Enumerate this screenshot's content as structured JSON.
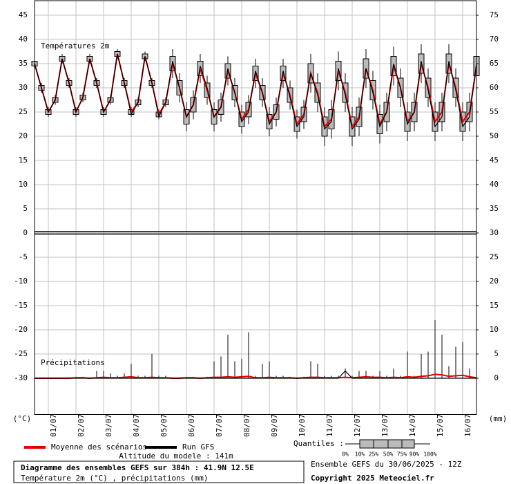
{
  "chart_data": {
    "type": "ensemble",
    "panel_labels": {
      "temperature": "Températures 2m",
      "precipitation": "Précipitations"
    },
    "y_unit": "(°C)",
    "y2_unit": "(mm)",
    "x": [
      0,
      6,
      12,
      18,
      24,
      30,
      36,
      42,
      48,
      54,
      60,
      66,
      72,
      78,
      84,
      90,
      96,
      102,
      108,
      114,
      120,
      126,
      132,
      138,
      144,
      150,
      156,
      162,
      168,
      174,
      180,
      186,
      192,
      198,
      204,
      210,
      216,
      222,
      228,
      234,
      240,
      246,
      252,
      258,
      264,
      270,
      276,
      282,
      288,
      294,
      300,
      306,
      312,
      318,
      324,
      330,
      336,
      342,
      348,
      354,
      360,
      366,
      372,
      378,
      384
    ],
    "xlim": [
      0,
      384
    ],
    "xticks": [
      {
        "value": 12,
        "label": "01/07"
      },
      {
        "value": 36,
        "label": "02/07"
      },
      {
        "value": 60,
        "label": "03/07"
      },
      {
        "value": 84,
        "label": "04/07"
      },
      {
        "value": 108,
        "label": "05/07"
      },
      {
        "value": 132,
        "label": "06/07"
      },
      {
        "value": 156,
        "label": "07/07"
      },
      {
        "value": 180,
        "label": "08/07"
      },
      {
        "value": 204,
        "label": "09/07"
      },
      {
        "value": 228,
        "label": "10/07"
      },
      {
        "value": 252,
        "label": "11/07"
      },
      {
        "value": 276,
        "label": "12/07"
      },
      {
        "value": 300,
        "label": "13/07"
      },
      {
        "value": 324,
        "label": "14/07"
      },
      {
        "value": 348,
        "label": "15/07"
      },
      {
        "value": 372,
        "label": "16/07"
      }
    ],
    "ylim": [
      -37.5,
      48
    ],
    "yticks": [
      45,
      40,
      35,
      30,
      25,
      20,
      15,
      10,
      5,
      0,
      -5,
      -10,
      -15,
      -20,
      -25,
      -30
    ],
    "y2lim": [
      -7.5,
      78
    ],
    "y2ticks": [
      75,
      70,
      65,
      60,
      55,
      50,
      45,
      40,
      35,
      30,
      25,
      20,
      15,
      10,
      5,
      0
    ],
    "grid": true,
    "series": [
      {
        "name": "Moyenne des scénarios",
        "color": "#e00000",
        "values": [
          35,
          30,
          25,
          27.5,
          36,
          31,
          25,
          28,
          36,
          31,
          25,
          27.5,
          37,
          31,
          25,
          27,
          36.5,
          31,
          24.5,
          27,
          35,
          30,
          24,
          26.5,
          34,
          29.5,
          24,
          26,
          33.5,
          29,
          23.5,
          25.5,
          33,
          29,
          23,
          25,
          33,
          28.5,
          22.5,
          24.5,
          33,
          29,
          22,
          23.5,
          33.5,
          29,
          22,
          24,
          34,
          29.5,
          22.5,
          25,
          34.5,
          30,
          23,
          25,
          35,
          30,
          23,
          25,
          35,
          30,
          23,
          25,
          34.5
        ]
      },
      {
        "name": "Run GFS",
        "color": "#000000",
        "values": [
          35,
          30,
          25,
          27.5,
          36,
          31,
          25,
          28,
          36,
          31,
          25,
          27.5,
          37,
          31,
          24.5,
          27,
          36.5,
          31,
          24,
          27,
          35.5,
          30,
          24,
          26.5,
          34.5,
          30,
          24,
          26,
          34,
          29,
          23,
          25,
          33.5,
          29,
          22.5,
          25,
          33.5,
          28,
          22,
          24,
          33,
          28.5,
          21.5,
          23,
          34,
          28.5,
          21.5,
          23.5,
          34,
          29,
          22,
          25,
          35,
          30,
          22.5,
          25,
          35.5,
          29.5,
          22,
          24,
          35.5,
          29.5,
          22,
          24,
          35
        ]
      },
      {
        "axis": "y2",
        "color": "#e00000",
        "values": [
          0,
          0,
          0,
          0,
          0,
          0,
          0.1,
          0.1,
          0,
          0.1,
          0.2,
          0.1,
          0.1,
          0.2,
          0.3,
          0.1,
          0.1,
          0.2,
          0.1,
          0.1,
          0,
          0,
          0.1,
          0.1,
          0,
          0.1,
          0.2,
          0.2,
          0.3,
          0.2,
          0.3,
          0.4,
          0.1,
          0.1,
          0.2,
          0.1,
          0.1,
          0.1,
          0,
          0.1,
          0.2,
          0.2,
          0.1,
          0.1,
          0.1,
          0.2,
          0.1,
          0.2,
          0.3,
          0.2,
          0.2,
          0.1,
          0.2,
          0.1,
          0.3,
          0.2,
          0.4,
          0.5,
          0.8,
          0.7,
          0.4,
          0.5,
          0.6,
          0.3,
          0.1
        ]
      },
      {
        "axis": "y2",
        "color": "#000000",
        "values": [
          0,
          0,
          0,
          0,
          0,
          0,
          0,
          0,
          0,
          0,
          0,
          0,
          0,
          0,
          0,
          0,
          0,
          0,
          0,
          0,
          0,
          0,
          0,
          0,
          0,
          0,
          0,
          0,
          0,
          0,
          0,
          0,
          0,
          0,
          0,
          0,
          0,
          0,
          0,
          0,
          0,
          0,
          0,
          0,
          0,
          1.5,
          0,
          0,
          0,
          0,
          0,
          0,
          0,
          0,
          0,
          0,
          0,
          0,
          0,
          0,
          0,
          0,
          0,
          0,
          0
        ]
      }
    ],
    "boxes": {
      "q1": [
        34.5,
        29.5,
        24.5,
        27,
        35.5,
        30.5,
        24.5,
        27.5,
        35.5,
        30.5,
        24.5,
        27,
        36.5,
        30.5,
        24.5,
        26.5,
        36,
        30.5,
        24,
        26.5,
        33.5,
        28.5,
        22.5,
        25,
        32.5,
        28,
        22.5,
        24.5,
        32,
        27.5,
        22,
        24,
        31.5,
        27.5,
        21.5,
        23.5,
        31.5,
        27,
        21,
        23,
        31,
        27,
        20,
        21.5,
        31.5,
        27,
        20,
        22,
        32,
        27.5,
        20.5,
        23,
        32.5,
        28,
        21,
        23,
        33,
        28,
        21,
        23,
        33,
        28,
        21,
        23,
        32.5
      ],
      "q3": [
        35.5,
        30.5,
        25.5,
        28,
        36.5,
        31.5,
        25.5,
        28.5,
        36.5,
        31.5,
        25.5,
        28,
        37.5,
        31.5,
        25.5,
        27.5,
        37,
        31.5,
        25,
        27.5,
        36.5,
        31.5,
        25.5,
        28,
        35.5,
        31,
        25.5,
        27.5,
        35,
        30.5,
        25,
        27,
        34.5,
        30.5,
        24.5,
        26.5,
        34.5,
        30,
        24,
        26,
        35,
        31,
        24,
        25.5,
        35.5,
        31,
        24,
        26,
        36,
        31.5,
        24.5,
        27,
        36.5,
        32,
        25,
        27,
        37,
        32,
        25,
        27,
        37,
        32,
        25,
        27,
        36.5
      ],
      "low": [
        34,
        29,
        24,
        26.5,
        35,
        30,
        24,
        27,
        35,
        30,
        24,
        26.5,
        36,
        30,
        24,
        26,
        35.5,
        30,
        23.5,
        26,
        32,
        27,
        21,
        23.5,
        31,
        26.5,
        21,
        23,
        30.5,
        26,
        20.5,
        22.5,
        30,
        26,
        20,
        22,
        30,
        25.5,
        19.5,
        21.5,
        29,
        25,
        18,
        19.5,
        29.5,
        25,
        18,
        20,
        30,
        25.5,
        18.5,
        21,
        30.5,
        26,
        19,
        21,
        31,
        26,
        19,
        21,
        31,
        26,
        19,
        21,
        30.5
      ],
      "high": [
        36,
        31,
        26,
        28.5,
        37,
        32,
        26,
        29,
        37,
        32,
        26,
        28.5,
        38,
        32,
        26,
        28,
        37.5,
        32,
        25.5,
        28,
        38,
        33,
        27,
        29.5,
        37,
        32.5,
        27,
        29,
        36.5,
        32,
        26.5,
        28.5,
        36,
        32,
        26,
        28,
        36,
        31.5,
        25.5,
        27.5,
        37,
        33,
        26,
        27.5,
        37.5,
        33,
        26,
        28,
        38,
        33.5,
        26.5,
        29,
        38.5,
        34,
        27,
        29,
        39,
        34,
        27,
        29,
        39,
        34,
        27,
        29,
        38.5
      ]
    },
    "precip_max": [
      0,
      0,
      0,
      0,
      0,
      0,
      0.3,
      0.3,
      0,
      1.5,
      1.5,
      1,
      0.5,
      1,
      3,
      0.5,
      0.5,
      5,
      0.5,
      0.5,
      0,
      0,
      0.3,
      0.3,
      0,
      0.3,
      3.5,
      4.5,
      9,
      3.5,
      4,
      9.5,
      0.5,
      3,
      3.5,
      0.5,
      0.5,
      0.3,
      0,
      0.3,
      3.5,
      3,
      0.5,
      0.5,
      0.5,
      2,
      0.5,
      1.5,
      1.5,
      0.5,
      1.5,
      0.5,
      2,
      0.5,
      5.5,
      0.5,
      5,
      5.5,
      12,
      9,
      2.5,
      6.5,
      7.5,
      2,
      0.5
    ],
    "quantiles": {
      "title": "Quantiles :",
      "labels": [
        "0%",
        "10%",
        "25%",
        "50%",
        "75%",
        "90%",
        "100%"
      ]
    },
    "altitude": "Altitude du modele : 141m"
  },
  "footer": {
    "title": "Diagramme des ensembles GEFS sur 384h : 41.9N 12.5E",
    "subtitle": "Température 2m (°C) , précipitations (mm)",
    "run": "Ensemble GEFS du 30/06/2025 - 12Z",
    "copyright": "Copyright 2025 Meteociel.fr"
  }
}
